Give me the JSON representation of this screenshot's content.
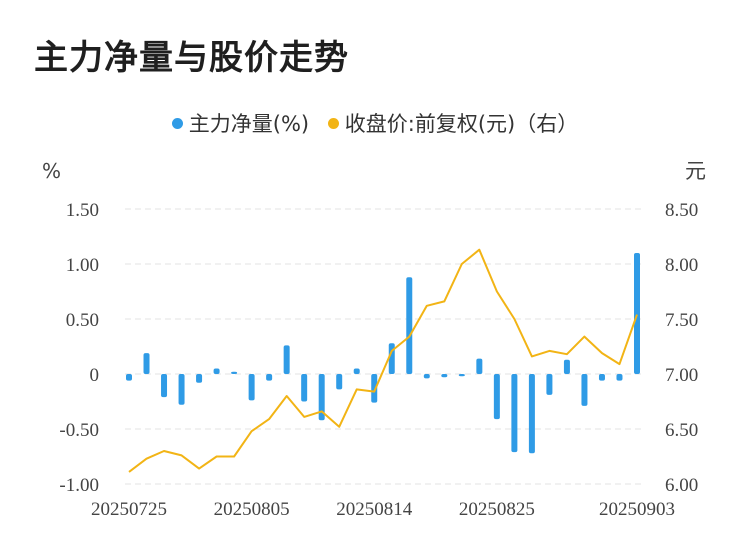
{
  "title": "主力净量与股价走势",
  "colors": {
    "bar": "#2f9be6",
    "line": "#f2b415",
    "grid": "#e3e3e3",
    "text": "#444444"
  },
  "chart_data": {
    "type": "bar+line",
    "left_unit": "%",
    "right_unit": "元",
    "legend_position": "top-center",
    "grid": "horizontal-dashed",
    "left_axis": {
      "ylim": [
        -1.0,
        1.5
      ],
      "ticks": [
        "1.50",
        "1.00",
        "0.50",
        "0",
        "-0.50",
        "-1.00"
      ],
      "tick_values": [
        1.5,
        1.0,
        0.5,
        0,
        -0.5,
        -1.0
      ]
    },
    "right_axis": {
      "ylim": [
        6.0,
        8.5
      ],
      "ticks": [
        "8.50",
        "8.00",
        "7.50",
        "7.00",
        "6.50",
        "6.00"
      ],
      "tick_values": [
        8.5,
        8.0,
        7.5,
        7.0,
        6.5,
        6.0
      ]
    },
    "x_tick_labels": [
      {
        "index": 0,
        "label": "20250725"
      },
      {
        "index": 7,
        "label": "20250805"
      },
      {
        "index": 14,
        "label": "20250814"
      },
      {
        "index": 21,
        "label": "20250825"
      },
      {
        "index": 29,
        "label": "20250903"
      }
    ],
    "series": [
      {
        "name": "主力净量(%)",
        "type": "bar",
        "axis": "left",
        "values": [
          -0.06,
          0.19,
          -0.21,
          -0.28,
          -0.08,
          0.05,
          0.02,
          -0.24,
          -0.06,
          0.26,
          -0.25,
          -0.42,
          -0.14,
          0.05,
          -0.26,
          0.28,
          0.88,
          -0.04,
          -0.03,
          -0.02,
          0.14,
          -0.41,
          -0.71,
          -0.72,
          -0.19,
          0.13,
          -0.29,
          -0.06,
          -0.06,
          1.1
        ]
      },
      {
        "name": "收盘价:前复权(元)（右）",
        "type": "line",
        "axis": "right",
        "values": [
          6.11,
          6.23,
          6.3,
          6.26,
          6.14,
          6.25,
          6.25,
          6.48,
          6.59,
          6.8,
          6.61,
          6.66,
          6.52,
          6.86,
          6.84,
          7.21,
          7.34,
          7.62,
          7.66,
          8.0,
          8.13,
          7.75,
          7.5,
          7.16,
          7.21,
          7.18,
          7.34,
          7.19,
          7.09,
          7.54
        ]
      }
    ]
  }
}
